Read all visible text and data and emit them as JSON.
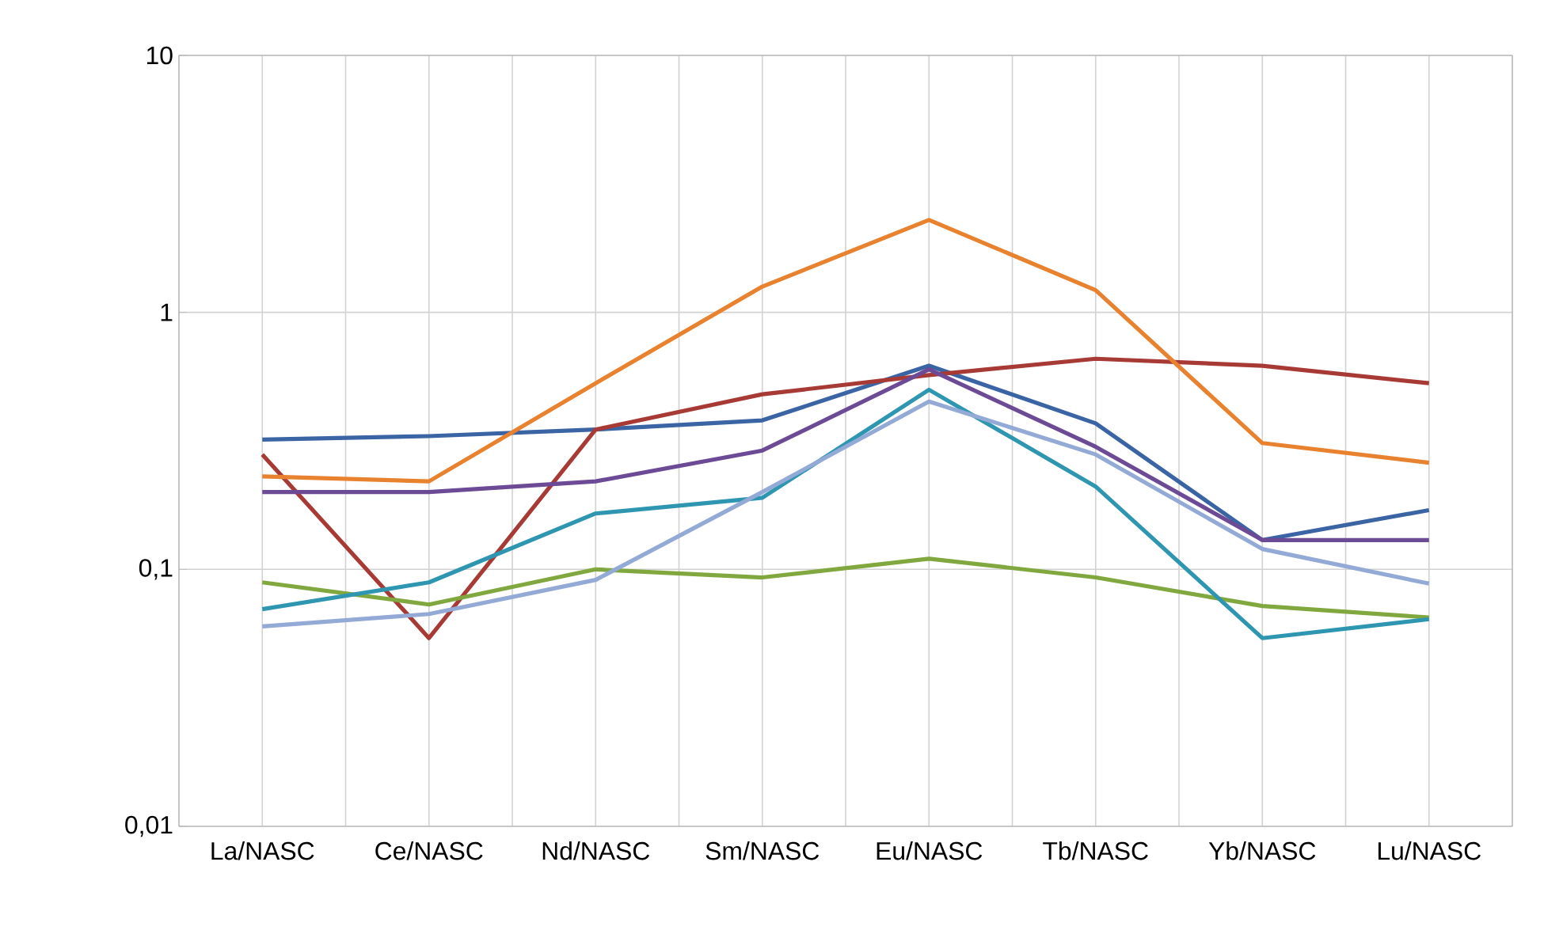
{
  "chart_data": {
    "type": "line",
    "categories": [
      "La/NASC",
      "Ce/NASC",
      "Nd/NASC",
      "Sm/NASC",
      "Eu/NASC",
      "Tb/NASC",
      "Yb/NASC",
      "Lu/NASC"
    ],
    "series": [
      {
        "color": "#3b64a5",
        "values": [
          0.32,
          0.33,
          0.35,
          0.38,
          0.62,
          0.37,
          0.13,
          0.17
        ]
      },
      {
        "color": "#a83a36",
        "values": [
          0.28,
          0.054,
          0.35,
          0.48,
          0.57,
          0.66,
          0.62,
          0.53
        ]
      },
      {
        "color": "#e8822e",
        "values": [
          0.23,
          0.22,
          0.53,
          1.26,
          2.29,
          1.22,
          0.31,
          0.26
        ]
      },
      {
        "color": "#80a83e",
        "values": [
          0.089,
          0.073,
          0.1,
          0.093,
          0.11,
          0.093,
          0.072,
          0.065
        ]
      },
      {
        "color": "#6c4a96",
        "values": [
          0.2,
          0.2,
          0.22,
          0.29,
          0.6,
          0.3,
          0.13,
          0.13
        ]
      },
      {
        "color": "#2e96b0",
        "values": [
          0.07,
          0.089,
          0.165,
          0.19,
          0.5,
          0.21,
          0.054,
          0.064
        ]
      },
      {
        "color": "#93a9d6",
        "values": [
          0.06,
          0.067,
          0.091,
          0.2,
          0.45,
          0.28,
          0.12,
          0.088
        ]
      }
    ],
    "log": "y",
    "ylim": [
      0.01,
      10
    ],
    "yticks": [
      {
        "value": 0.01,
        "label": "0,01"
      },
      {
        "value": 0.1,
        "label": "0,1"
      },
      1,
      10
    ],
    "grid": true,
    "marker": "none",
    "line_style": "solid"
  }
}
